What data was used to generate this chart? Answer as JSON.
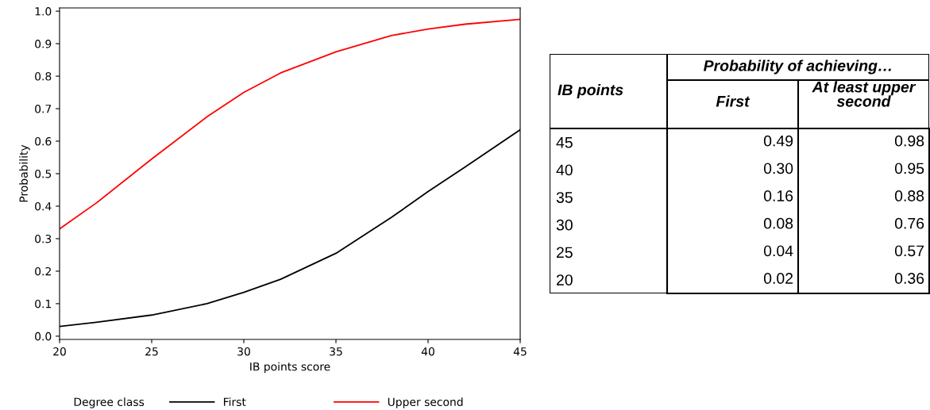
{
  "chart_data": [
    {
      "type": "line",
      "xlabel": "IB points score",
      "ylabel": "Probability",
      "legend_title": "Degree class",
      "legend": "bottom",
      "grid": false,
      "marker": "none",
      "line_style": "solid",
      "x": [
        20,
        22,
        25,
        28,
        30,
        32,
        35,
        38,
        40,
        42,
        45
      ],
      "series": [
        {
          "name": "First",
          "color": "#000000",
          "values": [
            0.03,
            0.043,
            0.065,
            0.1,
            0.135,
            0.175,
            0.255,
            0.365,
            0.445,
            0.52,
            0.635
          ]
        },
        {
          "name": "Upper second",
          "color": "#ff0000",
          "values": [
            0.33,
            0.41,
            0.545,
            0.675,
            0.75,
            0.81,
            0.875,
            0.925,
            0.945,
            0.96,
            0.975
          ]
        }
      ],
      "xlim": [
        20,
        45
      ],
      "xticks": [
        20,
        25,
        30,
        35,
        40,
        45
      ],
      "ylim": [
        -0.01,
        1.01
      ],
      "yticks": [
        {
          "value": 0,
          "label": "0.0"
        },
        0.1,
        0.2,
        0.3,
        0.4,
        0.5,
        0.6,
        0.7,
        0.8,
        0.9,
        {
          "value": 1,
          "label": "1.0"
        }
      ]
    },
    {
      "type": "heatmap",
      "title": "Probability of achieving…",
      "ylabel": "IB points",
      "categories": [
        "First",
        "At least upper second"
      ],
      "y_categories": [
        "45",
        "40",
        "35",
        "30",
        "25",
        "20"
      ],
      "cells": [
        [
          0.49,
          0.98
        ],
        [
          0.3,
          0.95
        ],
        [
          0.16,
          0.88
        ],
        [
          0.08,
          0.76
        ],
        [
          0.04,
          0.57
        ],
        [
          0.02,
          0.36
        ]
      ],
      "cell_labels": [
        [
          "0.49",
          "0.98"
        ],
        [
          "0.30",
          "0.95"
        ],
        [
          "0.16",
          "0.88"
        ],
        [
          "0.08",
          "0.76"
        ],
        [
          "0.04",
          "0.57"
        ],
        [
          "0.02",
          "0.36"
        ]
      ]
    }
  ]
}
